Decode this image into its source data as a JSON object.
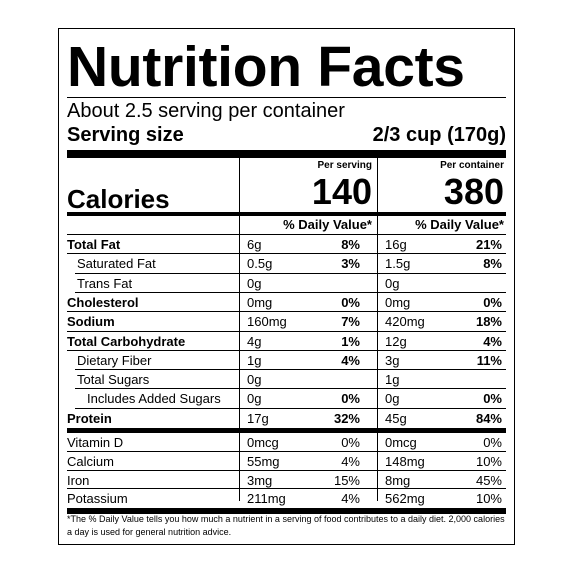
{
  "title": "Nutrition Facts",
  "servings_per_container": "About 2.5 serving per container",
  "serving_size_label": "Serving size",
  "serving_size_value": "2/3 cup (170g)",
  "per_serving_label": "Per serving",
  "per_container_label": "Per container",
  "calories_label": "Calories",
  "calories_per_serving": "140",
  "calories_per_container": "380",
  "daily_value_label": "% Daily Value*",
  "nutrients": [
    {
      "name": "Total Fat",
      "bold": true,
      "amt1": "6g",
      "pct1": "8%",
      "amt2": "16g",
      "pct2": "21%"
    },
    {
      "name": "Saturated Fat",
      "bold": false,
      "amt1": "0.5g",
      "pct1": "3%",
      "amt2": "1.5g",
      "pct2": "8%"
    },
    {
      "name": "Trans Fat",
      "bold": false,
      "amt1": "0g",
      "pct1": "",
      "amt2": "0g",
      "pct2": ""
    },
    {
      "name": "Cholesterol",
      "bold": true,
      "amt1": "0mg",
      "pct1": "0%",
      "amt2": "0mg",
      "pct2": "0%"
    },
    {
      "name": "Sodium",
      "bold": true,
      "amt1": "160mg",
      "pct1": "7%",
      "amt2": "420mg",
      "pct2": "18%"
    },
    {
      "name": "Total Carbohydrate",
      "bold": true,
      "amt1": "4g",
      "pct1": "1%",
      "amt2": "12g",
      "pct2": "4%"
    },
    {
      "name": "Dietary Fiber",
      "bold": false,
      "amt1": "1g",
      "pct1": "4%",
      "amt2": "3g",
      "pct2": "11%"
    },
    {
      "name": "Total Sugars",
      "bold": false,
      "amt1": "0g",
      "pct1": "",
      "amt2": "1g",
      "pct2": ""
    },
    {
      "name": "Includes Added Sugars",
      "bold": false,
      "amt1": "0g",
      "pct1": "0%",
      "amt2": "0g",
      "pct2": "0%"
    },
    {
      "name": "Protein",
      "bold": true,
      "amt1": "17g",
      "pct1": "32%",
      "amt2": "45g",
      "pct2": "84%"
    }
  ],
  "vitamins": [
    {
      "name": "Vitamin D",
      "amt1": "0mcg",
      "pct1": "0%",
      "amt2": "0mcg",
      "pct2": "0%"
    },
    {
      "name": "Calcium",
      "amt1": "55mg",
      "pct1": "4%",
      "amt2": "148mg",
      "pct2": "10%"
    },
    {
      "name": "Iron",
      "amt1": "3mg",
      "pct1": "15%",
      "amt2": "8mg",
      "pct2": "45%"
    },
    {
      "name": "Potassium",
      "amt1": "211mg",
      "pct1": "4%",
      "amt2": "562mg",
      "pct2": "10%"
    }
  ],
  "footnote": "*The % Daily Value tells you how much a nutrient in a serving of food contributes to a daily diet. 2,000 calories a day is used for general nutrition advice."
}
